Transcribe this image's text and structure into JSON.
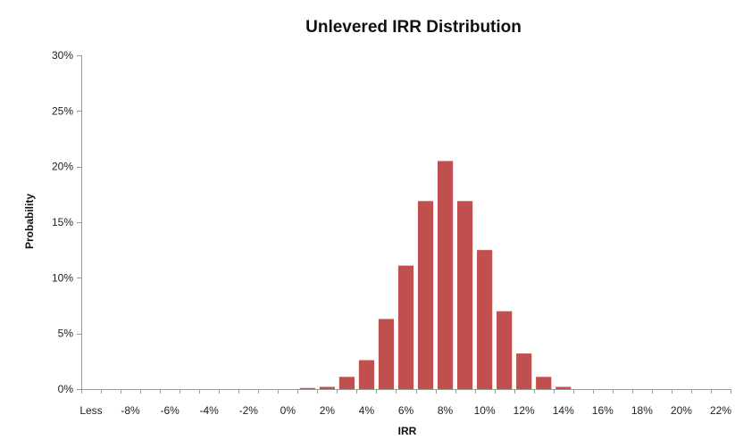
{
  "chart_data": {
    "type": "bar",
    "title": "Unlevered IRR Distribution",
    "xlabel": "IRR",
    "ylabel": "Probability",
    "ylim": [
      0,
      0.3
    ],
    "yticks": [
      0,
      0.05,
      0.1,
      0.15,
      0.2,
      0.25,
      0.3
    ],
    "ytick_labels": [
      "0%",
      "5%",
      "10%",
      "15%",
      "20%",
      "25%",
      "30%"
    ],
    "grid": false,
    "legend": "none",
    "bar_color": "#c0504d",
    "categories": [
      "Less",
      "-9%",
      "-8%",
      "-7%",
      "-6%",
      "-5%",
      "-4%",
      "-3%",
      "-2%",
      "-1%",
      "0%",
      "1%",
      "2%",
      "3%",
      "4%",
      "5%",
      "6%",
      "7%",
      "8%",
      "9%",
      "10%",
      "11%",
      "12%",
      "13%",
      "14%",
      "15%",
      "16%",
      "17%",
      "18%",
      "19%",
      "20%",
      "21%",
      "22%"
    ],
    "category_labels_shown": [
      "Less",
      "",
      "-8%",
      "",
      "-6%",
      "",
      "-4%",
      "",
      "-2%",
      "",
      "0%",
      "",
      "2%",
      "",
      "4%",
      "",
      "6%",
      "",
      "8%",
      "",
      "10%",
      "",
      "12%",
      "",
      "14%",
      "",
      "16%",
      "",
      "18%",
      "",
      "20%",
      "",
      "22%"
    ],
    "values": [
      0,
      0,
      0,
      0,
      0,
      0,
      0,
      0,
      0,
      0,
      0,
      0.001,
      0.002,
      0.011,
      0.026,
      0.063,
      0.111,
      0.169,
      0.205,
      0.169,
      0.125,
      0.07,
      0.032,
      0.011,
      0.002,
      0,
      0,
      0,
      0,
      0,
      0,
      0,
      0
    ]
  }
}
